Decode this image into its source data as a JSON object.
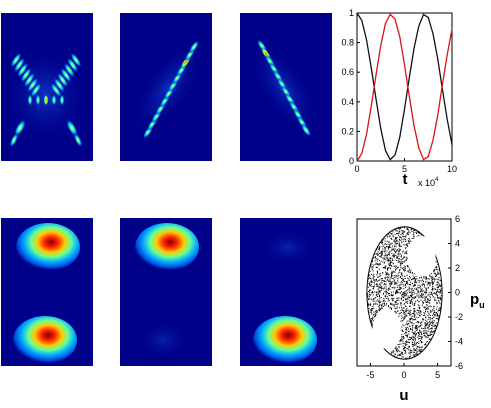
{
  "figure": {
    "colors": {
      "background": "#000088",
      "line_black": "#111111",
      "line_red": "#dd1111",
      "axis": "#000000"
    }
  },
  "chart_data": [
    {
      "type": "heatmap",
      "panel": "top-1",
      "description_tag": "interference-pattern-symmetric"
    },
    {
      "type": "heatmap",
      "panel": "top-2",
      "description_tag": "interference-pattern-diagonal-right"
    },
    {
      "type": "heatmap",
      "panel": "top-3",
      "description_tag": "interference-pattern-diagonal-left"
    },
    {
      "type": "line",
      "panel": "top-right",
      "xlabel": "t",
      "x_multiplier": "x 10",
      "x_multiplier_exp": "4",
      "xlim": [
        0,
        10
      ],
      "ylim": [
        0,
        1
      ],
      "xticks": [
        0,
        5,
        10
      ],
      "yticks": [
        0,
        0.2,
        0.4,
        0.6,
        0.8,
        1
      ],
      "series": [
        {
          "color": "#111111",
          "x": [
            0,
            0.5,
            1,
            1.5,
            2,
            2.5,
            3,
            3.5,
            4,
            4.5,
            5,
            5.5,
            6,
            6.5,
            7,
            7.5,
            8,
            8.5,
            9,
            9.5,
            10
          ],
          "y": [
            1,
            0.95,
            0.82,
            0.63,
            0.42,
            0.22,
            0.07,
            0.01,
            0.04,
            0.16,
            0.35,
            0.56,
            0.76,
            0.91,
            0.99,
            0.97,
            0.86,
            0.69,
            0.48,
            0.28,
            0.11
          ]
        },
        {
          "color": "#dd1111",
          "x": [
            0,
            0.5,
            1,
            1.5,
            2,
            2.5,
            3,
            3.5,
            4,
            4.5,
            5,
            5.5,
            6,
            6.5,
            7,
            7.5,
            8,
            8.5,
            9,
            9.5,
            10
          ],
          "y": [
            0,
            0.05,
            0.18,
            0.37,
            0.58,
            0.78,
            0.93,
            0.99,
            0.96,
            0.84,
            0.65,
            0.44,
            0.24,
            0.09,
            0.01,
            0.03,
            0.14,
            0.31,
            0.52,
            0.72,
            0.89
          ]
        }
      ]
    },
    {
      "type": "heatmap",
      "panel": "bottom-1",
      "description_tag": "two-lobes-both"
    },
    {
      "type": "heatmap",
      "panel": "bottom-2",
      "description_tag": "one-lobe-top"
    },
    {
      "type": "heatmap",
      "panel": "bottom-3",
      "description_tag": "one-lobe-bottom"
    },
    {
      "type": "scatter",
      "panel": "bottom-right",
      "xlabel": "u",
      "ylabel": "p",
      "ylabel_sub": "u",
      "xlim": [
        -7,
        7
      ],
      "ylim": [
        -6,
        6
      ],
      "xticks": [
        -5,
        0,
        5
      ],
      "yticks": [
        -6,
        -4,
        -2,
        0,
        2,
        4,
        6
      ]
    }
  ]
}
